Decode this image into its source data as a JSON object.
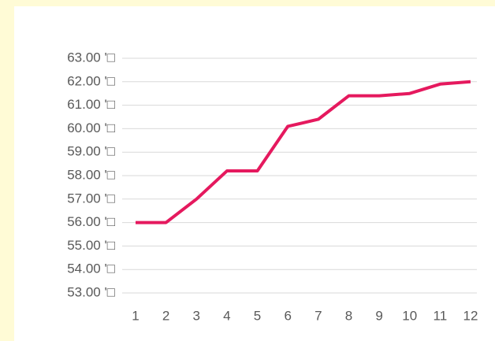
{
  "chart_data": {
    "type": "line",
    "categories": [
      "1",
      "2",
      "3",
      "4",
      "5",
      "6",
      "7",
      "8",
      "9",
      "10",
      "11",
      "12"
    ],
    "series": [
      {
        "color": "#e5195e",
        "values": [
          56.0,
          56.0,
          57.0,
          58.2,
          58.2,
          60.1,
          60.4,
          61.4,
          61.4,
          61.5,
          61.9,
          62.0
        ]
      }
    ],
    "ylim": [
      53,
      63
    ],
    "yticks": [
      {
        "value": 53,
        "label": "53.00 '□"
      },
      {
        "value": 54,
        "label": "54.00 '□"
      },
      {
        "value": 55,
        "label": "55.00 '□"
      },
      {
        "value": 56,
        "label": "56.00 '□"
      },
      {
        "value": 57,
        "label": "57.00 '□"
      },
      {
        "value": 58,
        "label": "58.00 '□"
      },
      {
        "value": 59,
        "label": "59.00 '□"
      },
      {
        "value": 60,
        "label": "60.00 '□"
      },
      {
        "value": 61,
        "label": "61.00 '□"
      },
      {
        "value": 62,
        "label": "62.00 '□"
      },
      {
        "value": 63,
        "label": "63.00 '□"
      }
    ],
    "grid": true
  }
}
